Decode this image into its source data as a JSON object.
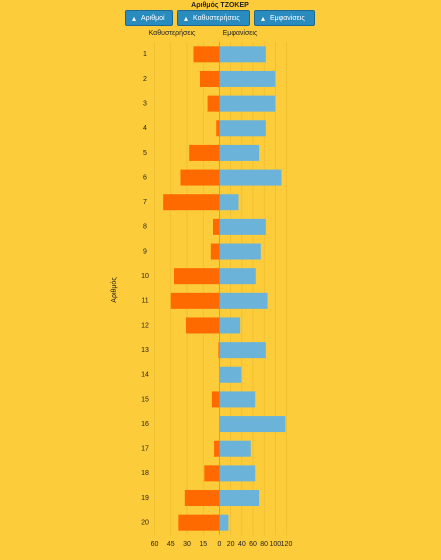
{
  "chart_data": {
    "type": "diverging_bar",
    "title": "Αριθμός ΤΖΟΚΕΡ",
    "controls": [
      "Αριθμοί",
      "Καθυστερήσεις",
      "Εμφανίσεις"
    ],
    "y_label": "Αριθμός",
    "categories": [
      "1",
      "2",
      "3",
      "4",
      "5",
      "6",
      "7",
      "8",
      "9",
      "10",
      "11",
      "12",
      "13",
      "14",
      "15",
      "16",
      "17",
      "18",
      "19",
      "20"
    ],
    "series": [
      {
        "name": "Καθυστερήσεις",
        "color": "#ff6a00",
        "side": "left",
        "values": [
          24,
          18,
          11,
          3,
          28,
          36,
          52,
          6,
          8,
          42,
          45,
          31,
          1,
          0,
          7,
          0,
          5,
          14,
          32,
          38
        ],
        "xlim": [
          0,
          60
        ],
        "xticks": [
          60,
          45,
          30,
          15,
          0
        ]
      },
      {
        "name": "Εμφανίσεις",
        "color": "#6bb3d9",
        "side": "right",
        "values": [
          83,
          100,
          100,
          83,
          71,
          111,
          34,
          83,
          74,
          65,
          86,
          37,
          83,
          39,
          64,
          118,
          56,
          64,
          71,
          16
        ],
        "xlim": [
          0,
          120
        ],
        "xticks": [
          20,
          40,
          60,
          80,
          100,
          120
        ]
      }
    ],
    "grid": true
  }
}
